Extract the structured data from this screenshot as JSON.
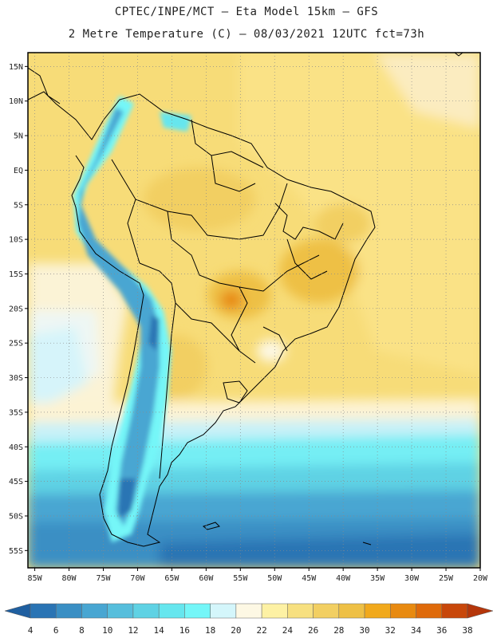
{
  "header": {
    "line1": "CPTEC/INPE/MCT –  Eta Model 15km – GFS",
    "line2": "2 Metre Temperature (C) – 08/03/2021 12UTC fct=73h"
  },
  "axes": {
    "latitude_labels": [
      "15N",
      "10N",
      "5N",
      "EQ",
      "5S",
      "10S",
      "15S",
      "20S",
      "25S",
      "30S",
      "35S",
      "40S",
      "45S",
      "50S",
      "55S"
    ],
    "latitude_values": [
      15,
      10,
      5,
      0,
      -5,
      -10,
      -15,
      -20,
      -25,
      -30,
      -35,
      -40,
      -45,
      -50,
      -55
    ],
    "longitude_labels": [
      "85W",
      "80W",
      "75W",
      "70W",
      "65W",
      "60W",
      "55W",
      "50W",
      "45W",
      "40W",
      "35W",
      "30W",
      "25W",
      "20W"
    ],
    "longitude_values": [
      -85,
      -80,
      -75,
      -70,
      -65,
      -60,
      -55,
      -50,
      -45,
      -40,
      -35,
      -30,
      -25,
      -20
    ],
    "lat_range": [
      -57.5,
      17.0
    ],
    "lon_range": [
      -86.0,
      -20.0
    ]
  },
  "colorbar": {
    "labels": [
      "4",
      "6",
      "8",
      "10",
      "12",
      "14",
      "16",
      "18",
      "20",
      "22",
      "24",
      "26",
      "28",
      "30",
      "32",
      "34",
      "36",
      "38"
    ],
    "colors": [
      "#1f5fa0",
      "#2a74b4",
      "#3a8fc4",
      "#48a6d2",
      "#56bedc",
      "#5fd2e4",
      "#66e6ee",
      "#74f6f8",
      "#d4f6fb",
      "#fdf8e4",
      "#fdf1a4",
      "#f7e080",
      "#f2cf62",
      "#eec045",
      "#f1a91c",
      "#e88a10",
      "#df6a0a",
      "#c8470a",
      "#b5360a"
    ]
  },
  "chart_data": {
    "type": "map",
    "title": "2 Metre Temperature (C)",
    "model": "Eta Model 15km – GFS",
    "date": "08/03/2021 12UTC",
    "forecast": "fct=73h",
    "units": "C",
    "grid": true
  }
}
